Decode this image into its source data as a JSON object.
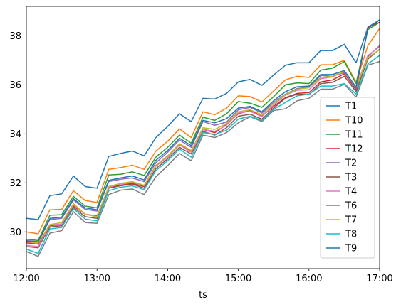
{
  "chart_data": {
    "type": "line",
    "xlabel": "ts",
    "ylabel": "",
    "title": "",
    "x_ticks": [
      "12:00",
      "13:00",
      "14:00",
      "15:00",
      "16:00",
      "17:00"
    ],
    "y_ticks": [
      30,
      32,
      34,
      36,
      38
    ],
    "xlim": [
      "12:00",
      "17:00"
    ],
    "ylim": [
      28.5,
      39.2
    ],
    "grid": false,
    "legend_position": "lower right",
    "x": [
      "12:00",
      "12:10",
      "12:20",
      "12:30",
      "12:40",
      "12:50",
      "13:00",
      "13:10",
      "13:20",
      "13:30",
      "13:40",
      "13:50",
      "14:00",
      "14:10",
      "14:20",
      "14:30",
      "14:40",
      "14:50",
      "15:00",
      "15:10",
      "15:20",
      "15:30",
      "15:40",
      "15:50",
      "16:00",
      "16:10",
      "16:20",
      "16:30",
      "16:40",
      "16:50",
      "17:00"
    ],
    "series": [
      {
        "name": "T1",
        "color": "#1f77b4",
        "values": [
          30.55,
          30.5,
          31.48,
          31.55,
          32.28,
          31.85,
          31.78,
          33.08,
          33.2,
          33.3,
          33.1,
          33.85,
          34.3,
          34.82,
          34.5,
          35.45,
          35.42,
          35.65,
          36.12,
          36.22,
          35.98,
          36.4,
          36.8,
          36.9,
          36.9,
          37.4,
          37.4,
          37.65,
          36.9,
          38.35,
          38.65
        ]
      },
      {
        "name": "T10",
        "color": "#ff7f0e",
        "values": [
          30.0,
          29.92,
          30.9,
          30.92,
          31.68,
          31.28,
          31.2,
          32.55,
          32.62,
          32.72,
          32.55,
          33.3,
          33.7,
          34.2,
          33.85,
          34.9,
          34.78,
          35.05,
          35.55,
          35.52,
          35.3,
          35.75,
          36.2,
          36.35,
          36.3,
          36.82,
          36.82,
          37.0,
          36.1,
          37.6,
          38.3
        ]
      },
      {
        "name": "T11",
        "color": "#2ca02c",
        "values": [
          29.7,
          29.65,
          30.68,
          30.7,
          31.45,
          31.05,
          30.98,
          32.32,
          32.35,
          32.45,
          32.3,
          33.05,
          33.45,
          33.95,
          33.62,
          34.68,
          34.55,
          34.82,
          35.32,
          35.25,
          35.08,
          35.52,
          36.0,
          36.08,
          36.05,
          36.6,
          36.68,
          36.95,
          36.05,
          38.25,
          38.55
        ]
      },
      {
        "name": "T12",
        "color": "#d62728",
        "values": [
          29.55,
          29.5,
          30.25,
          30.3,
          31.05,
          30.72,
          30.65,
          31.82,
          31.9,
          31.98,
          31.85,
          32.7,
          33.1,
          33.55,
          33.3,
          34.18,
          34.05,
          34.38,
          34.82,
          34.95,
          34.72,
          35.12,
          35.48,
          35.65,
          35.68,
          36.12,
          36.2,
          36.45,
          35.8,
          38.35,
          38.55
        ]
      },
      {
        "name": "T2",
        "color": "#9467bd",
        "values": [
          29.65,
          29.6,
          30.5,
          30.55,
          31.3,
          30.92,
          30.85,
          32.05,
          32.15,
          32.2,
          32.05,
          32.82,
          33.25,
          33.75,
          33.45,
          34.5,
          34.35,
          34.48,
          34.98,
          35.08,
          34.85,
          35.28,
          35.62,
          35.85,
          35.9,
          36.38,
          36.35,
          36.5,
          35.85,
          37.15,
          37.6
        ]
      },
      {
        "name": "T3",
        "color": "#8c564b",
        "values": [
          29.4,
          29.35,
          30.2,
          30.25,
          31.0,
          30.62,
          30.55,
          31.78,
          31.88,
          31.95,
          31.78,
          32.58,
          32.98,
          33.45,
          33.18,
          34.1,
          33.95,
          34.25,
          34.72,
          34.8,
          34.6,
          35.05,
          35.45,
          35.62,
          35.6,
          36.05,
          36.1,
          36.35,
          35.72,
          37.05,
          37.45
        ]
      },
      {
        "name": "T4",
        "color": "#e377c2",
        "values": [
          29.45,
          29.4,
          30.28,
          30.32,
          31.1,
          30.72,
          30.62,
          31.82,
          31.95,
          32.02,
          31.88,
          32.68,
          33.05,
          33.55,
          33.25,
          34.18,
          34.1,
          34.35,
          34.85,
          34.92,
          34.7,
          35.18,
          35.58,
          35.78,
          35.8,
          36.25,
          36.32,
          36.55,
          35.9,
          37.2,
          37.55
        ]
      },
      {
        "name": "T6",
        "color": "#7f7f7f",
        "values": [
          29.2,
          29.0,
          29.95,
          30.05,
          30.82,
          30.38,
          30.35,
          31.52,
          31.7,
          31.75,
          31.52,
          32.25,
          32.7,
          33.2,
          32.9,
          33.95,
          33.85,
          34.05,
          34.45,
          34.7,
          34.5,
          34.95,
          35.02,
          35.35,
          35.45,
          35.82,
          35.82,
          36.02,
          35.5,
          36.8,
          36.95
        ]
      },
      {
        "name": "T7",
        "color": "#bcbd22",
        "values": [
          29.6,
          29.55,
          30.3,
          30.38,
          31.15,
          30.72,
          30.62,
          31.85,
          31.98,
          32.05,
          31.9,
          32.72,
          33.1,
          33.6,
          33.32,
          34.25,
          34.18,
          34.42,
          34.9,
          34.98,
          34.78,
          35.25,
          35.6,
          35.82,
          35.88,
          36.3,
          36.35,
          36.55,
          35.9,
          37.1,
          37.45
        ]
      },
      {
        "name": "T8",
        "color": "#17becf",
        "values": [
          29.3,
          29.12,
          30.12,
          30.18,
          30.95,
          30.52,
          30.45,
          31.68,
          31.82,
          31.88,
          31.72,
          32.5,
          32.9,
          33.38,
          33.05,
          34.05,
          33.98,
          34.15,
          34.6,
          34.72,
          34.55,
          35.0,
          35.28,
          35.55,
          35.62,
          35.95,
          35.95,
          36.05,
          35.62,
          36.85,
          37.2
        ]
      },
      {
        "name": "T9",
        "color": "#1f77b4",
        "values": [
          29.62,
          29.6,
          30.55,
          30.6,
          31.35,
          30.98,
          30.9,
          32.1,
          32.2,
          32.28,
          32.12,
          32.92,
          33.32,
          33.82,
          33.52,
          34.55,
          34.45,
          34.62,
          35.05,
          35.12,
          34.9,
          35.35,
          35.72,
          35.92,
          35.95,
          36.42,
          36.42,
          36.58,
          35.9,
          38.3,
          38.65
        ]
      }
    ]
  }
}
